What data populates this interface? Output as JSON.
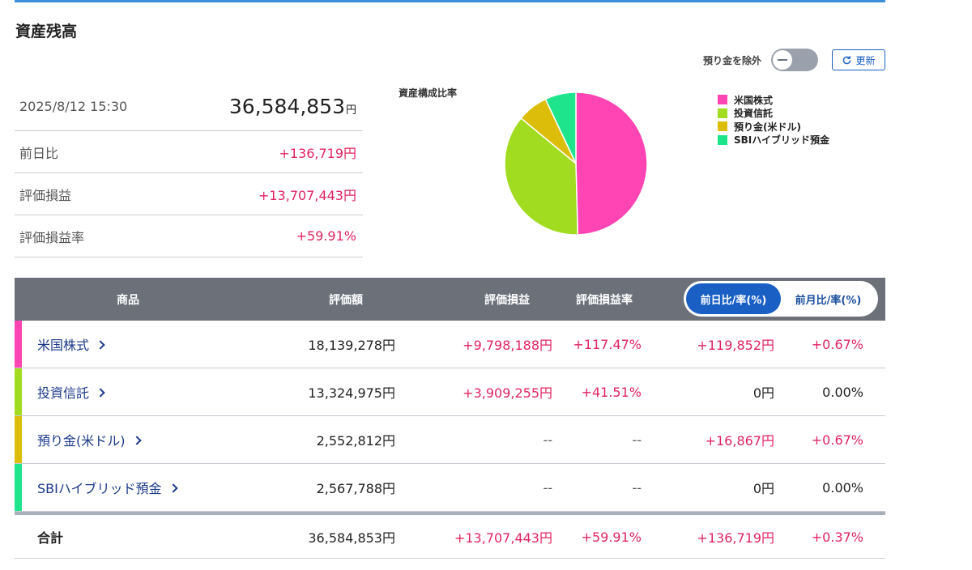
{
  "page": {
    "title": "資産残高"
  },
  "summary": {
    "datetime": "2025/8/12 15:30",
    "total": "36,584,853",
    "total_unit": "円",
    "rows": [
      {
        "label": "前日比",
        "value": "+136,719円"
      },
      {
        "label": "評価損益",
        "value": "+13,707,443円"
      },
      {
        "label": "評価損益率",
        "value": "+59.91%"
      }
    ]
  },
  "controls": {
    "exclude_deposit_label": "預り金を除外",
    "exclude_deposit_on": false,
    "refresh_label": "更新"
  },
  "chart_data": {
    "type": "pie",
    "title": "資産構成比率",
    "legend_position": "right",
    "series": [
      {
        "name": "米国株式",
        "value": 18139278,
        "color": "#ff44b4"
      },
      {
        "name": "投資信託",
        "value": 13324975,
        "color": "#a2dc21"
      },
      {
        "name": "預り金(米ドル)",
        "value": 2552812,
        "color": "#dcbd09"
      },
      {
        "name": "SBIハイブリッド預金",
        "value": 2567788,
        "color": "#1ee58c"
      }
    ]
  },
  "table": {
    "headers": {
      "product": "商品",
      "valuation": "評価額",
      "pl": "評価損益",
      "pl_rate": "評価損益率"
    },
    "toggle": {
      "active": "前日比/率(%)",
      "inactive": "前月比/率(%)"
    },
    "rows": [
      {
        "name": "米国株式",
        "color": "#ff44b4",
        "valuation": "18,139,278円",
        "pl": "+9,798,188円",
        "pl_rate": "+117.47%",
        "diff": "+119,852円",
        "diff_rate": "+0.67%"
      },
      {
        "name": "投資信託",
        "color": "#a2dc21",
        "valuation": "13,324,975円",
        "pl": "+3,909,255円",
        "pl_rate": "+41.51%",
        "diff": "0円",
        "diff_rate": "0.00%"
      },
      {
        "name": "預り金(米ドル)",
        "color": "#dcbd09",
        "valuation": "2,552,812円",
        "pl": "--",
        "pl_rate": "--",
        "diff": "+16,867円",
        "diff_rate": "+0.67%"
      },
      {
        "name": "SBIハイブリッド預金",
        "color": "#1ee58c",
        "valuation": "2,567,788円",
        "pl": "--",
        "pl_rate": "--",
        "diff": "0円",
        "diff_rate": "0.00%"
      }
    ],
    "total": {
      "label": "合計",
      "valuation": "36,584,853円",
      "pl": "+13,707,443円",
      "pl_rate": "+59.91%",
      "diff": "+136,719円",
      "diff_rate": "+0.37%"
    }
  },
  "colors": {
    "positive": "#e0245e",
    "accent": "#1a5fc4",
    "header_bg": "#6b7079"
  }
}
